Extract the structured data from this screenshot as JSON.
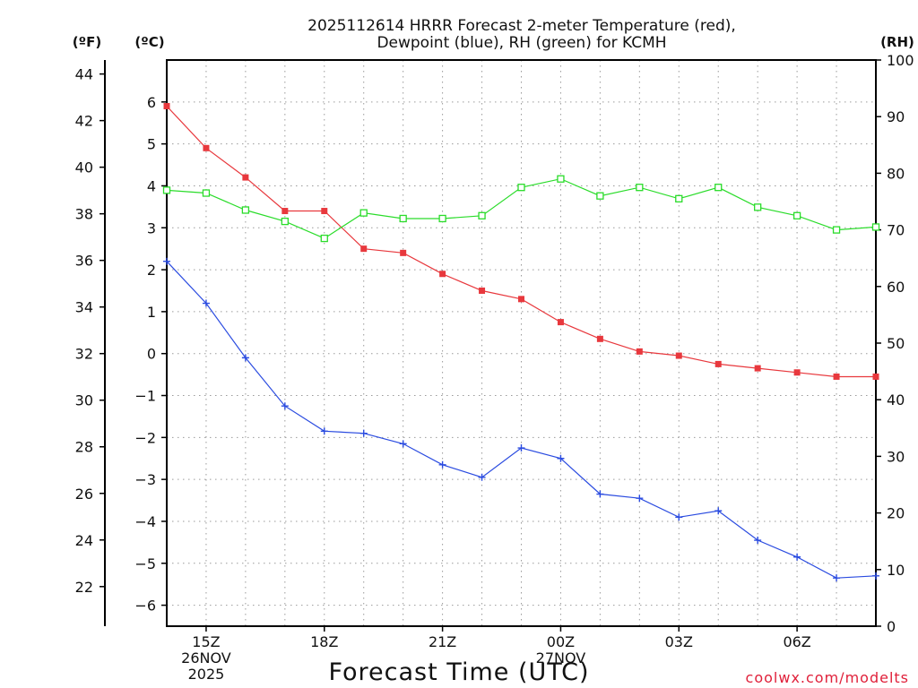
{
  "chart_data": {
    "type": "line",
    "title": [
      "2025112614 HRRR Forecast 2-meter Temperature (red),",
      "Dewpoint (blue), RH (green) for KCMH"
    ],
    "xlabel": "Forecast Time (UTC)",
    "credit": "coolwx.com/modelts",
    "units": {
      "fahrenheit": "(ºF)",
      "celsius": "(ºC)",
      "rh": "(RH)"
    },
    "x_hours": [
      0,
      1,
      2,
      3,
      4,
      5,
      6,
      7,
      8,
      9,
      10,
      11,
      12,
      13,
      14,
      15,
      16,
      17,
      18
    ],
    "xlim": [
      0,
      18
    ],
    "x_ticks": [
      {
        "hour": 1,
        "lines": [
          "15Z",
          "26NOV",
          "2025"
        ]
      },
      {
        "hour": 4,
        "lines": [
          "18Z"
        ]
      },
      {
        "hour": 7,
        "lines": [
          "21Z"
        ]
      },
      {
        "hour": 10,
        "lines": [
          "00Z",
          "27NOV"
        ]
      },
      {
        "hour": 13,
        "lines": [
          "03Z"
        ]
      },
      {
        "hour": 16,
        "lines": [
          "06Z"
        ]
      }
    ],
    "y_celsius": {
      "range": [
        -6.5,
        7.0
      ],
      "ticks": [
        -6,
        -5,
        -4,
        -3,
        -2,
        -1,
        0,
        1,
        2,
        3,
        4,
        5,
        6
      ]
    },
    "y_fahrenheit_ticks": [
      22,
      24,
      26,
      28,
      30,
      32,
      34,
      36,
      38,
      40,
      42,
      44
    ],
    "y_rh": {
      "range": [
        0,
        100
      ],
      "ticks": [
        0,
        10,
        20,
        30,
        40,
        50,
        60,
        70,
        80,
        90,
        100
      ]
    },
    "series": [
      {
        "name": "Temperature",
        "axis": "celsius",
        "color": "#e8383d",
        "marker": "filled-square",
        "values": [
          5.9,
          4.9,
          4.2,
          3.4,
          3.4,
          2.5,
          2.4,
          1.9,
          1.5,
          1.3,
          0.75,
          0.35,
          0.05,
          -0.05,
          -0.25,
          -0.35,
          -0.45,
          -0.55,
          -0.55
        ]
      },
      {
        "name": "Dewpoint",
        "axis": "celsius",
        "color": "#2a4be0",
        "marker": "plus",
        "values": [
          2.2,
          1.2,
          -0.1,
          -1.25,
          -1.85,
          -1.9,
          -2.15,
          -2.65,
          -2.95,
          -2.25,
          -2.5,
          -3.35,
          -3.45,
          -3.9,
          -3.75,
          -4.45,
          -4.85,
          -5.35,
          -5.3
        ]
      },
      {
        "name": "RH",
        "axis": "rh",
        "color": "#2adc2a",
        "marker": "open-square",
        "values": [
          77.0,
          76.5,
          73.5,
          71.5,
          68.5,
          73.0,
          72.0,
          72.0,
          72.5,
          77.5,
          79.0,
          76.0,
          77.5,
          75.5,
          77.5,
          74.0,
          72.5,
          70.0,
          70.5
        ]
      }
    ]
  }
}
